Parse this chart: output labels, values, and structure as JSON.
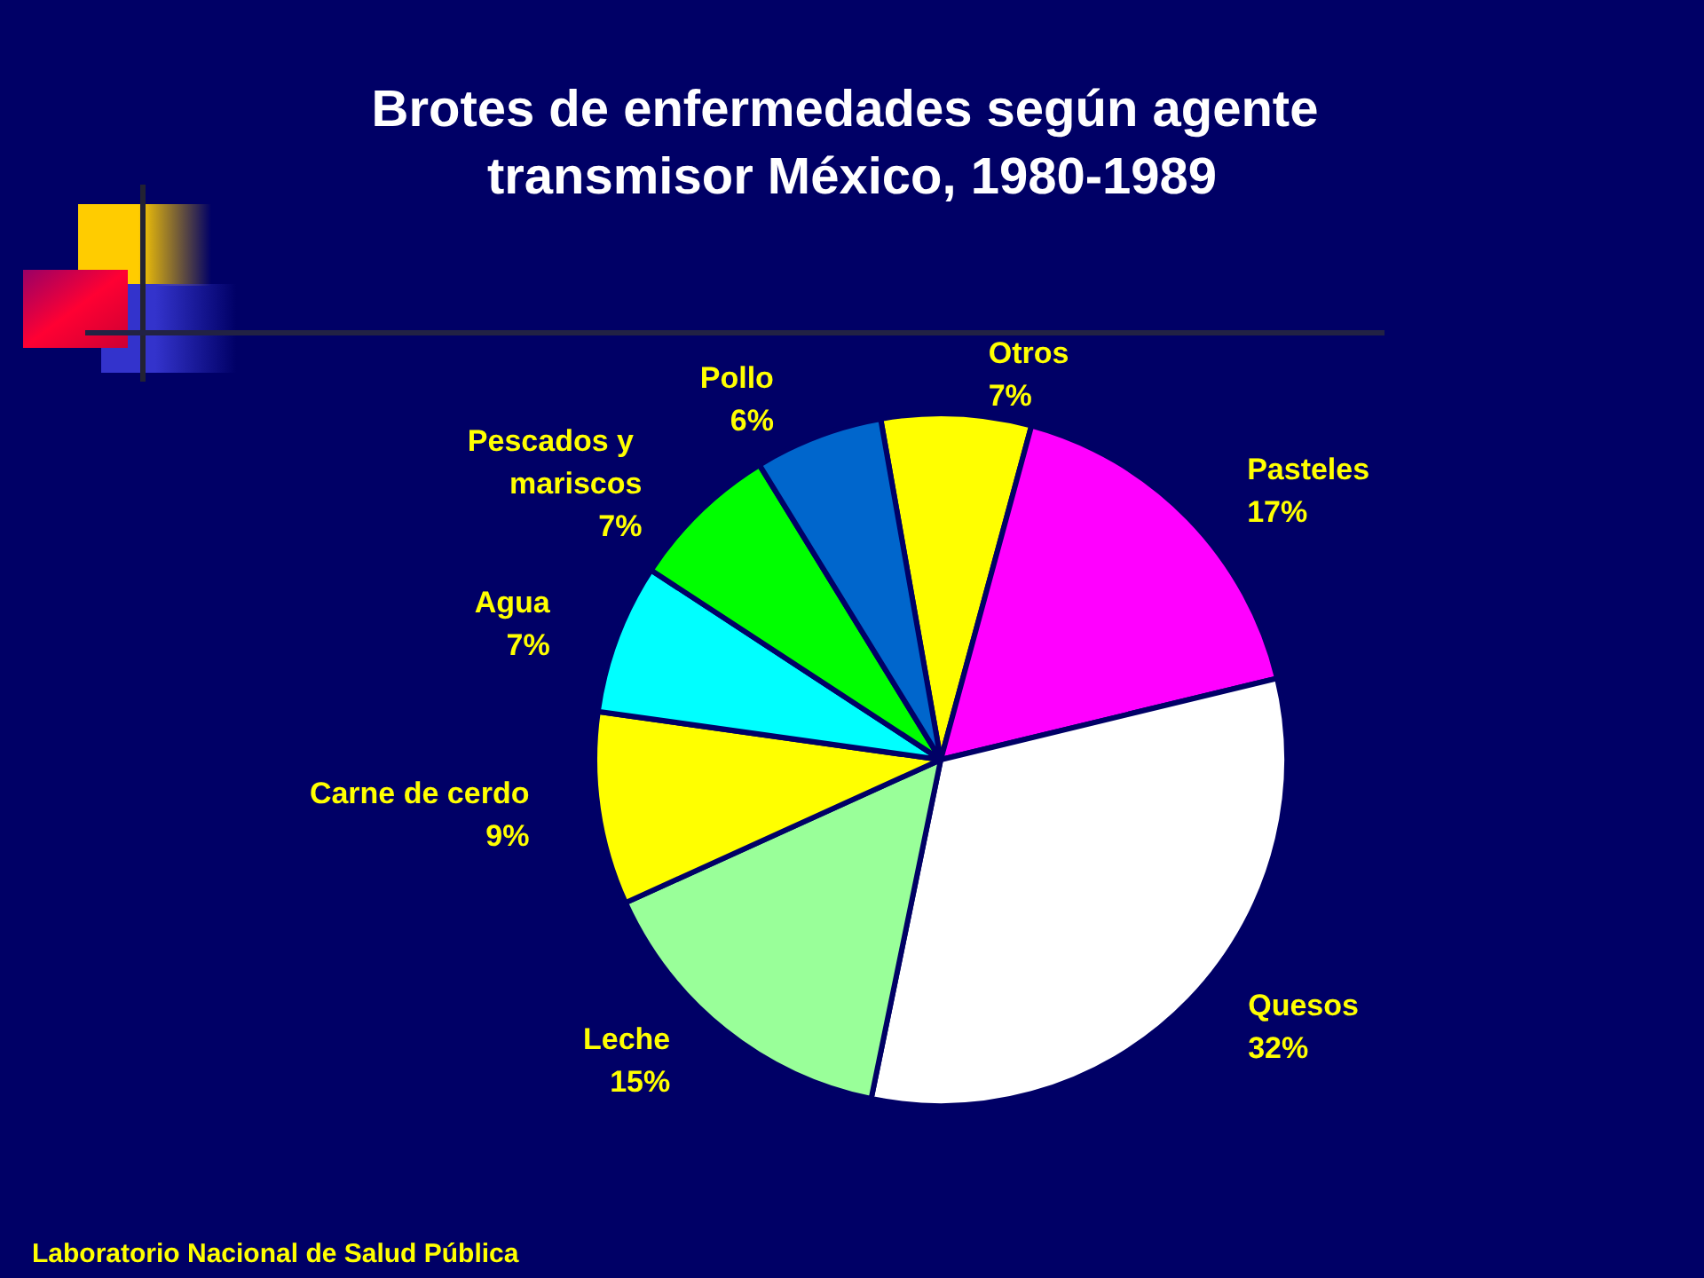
{
  "chart_data": {
    "type": "pie",
    "title": "Brotes de enfermedades según agente transmisor México, 1980-1989",
    "categories": [
      "Otros",
      "Pasteles",
      "Quesos",
      "Leche",
      "Carne de cerdo",
      "Agua",
      "Pescados y mariscos",
      "Pollo"
    ],
    "values": [
      7,
      17,
      32,
      15,
      9,
      7,
      7,
      6
    ],
    "value_labels": [
      "7%",
      "17%",
      "32%",
      "15%",
      "9%",
      "7%",
      "7%",
      "6%"
    ],
    "colors": [
      "#ffff00",
      "#ff00ff",
      "#ffffff",
      "#99ff99",
      "#ffff00",
      "#00ffff",
      "#00ff00",
      "#0066cc"
    ],
    "annotations": [
      "Laboratorio Nacional de Salud Pública"
    ]
  }
}
